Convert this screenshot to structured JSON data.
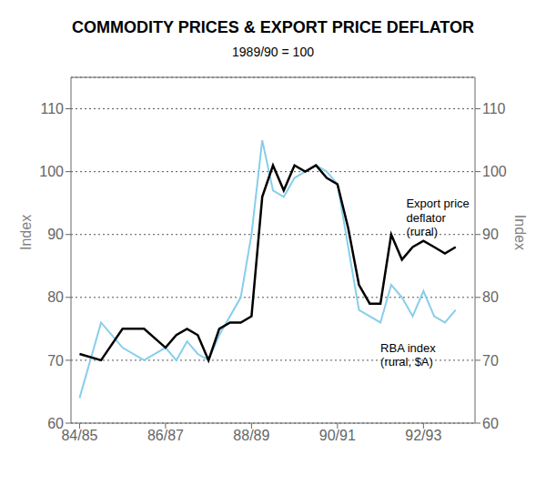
{
  "chart_data": {
    "type": "line",
    "title": "COMMODITY PRICES & EXPORT PRICE DEFLATOR",
    "subtitle": "1989/90 = 100",
    "ylabel": "Index",
    "y2label": "Index",
    "x": [
      0,
      0.5,
      1.0,
      1.5,
      2.0,
      2.25,
      2.5,
      2.75,
      3.0,
      3.25,
      3.5,
      3.75,
      4.0,
      4.25,
      4.5,
      4.75,
      5.0,
      5.25,
      5.5,
      5.75,
      6.0,
      6.25,
      6.5,
      6.75,
      7.0,
      7.25,
      7.5,
      7.75,
      8.0,
      8.25,
      8.5,
      8.75
    ],
    "series": [
      {
        "color": "#87ceeb",
        "values": [
          64,
          76,
          72,
          70,
          72,
          70,
          73,
          71,
          70,
          74,
          77,
          80,
          90,
          105,
          97,
          96,
          99,
          100,
          101,
          100,
          98,
          88,
          78,
          77,
          76,
          82,
          80,
          77,
          81,
          77,
          76,
          78
        ]
      },
      {
        "color": "#000000",
        "values": [
          71,
          70,
          75,
          75,
          72,
          74,
          75,
          74,
          70,
          75,
          76,
          76,
          77,
          96,
          101,
          97,
          101,
          100,
          101,
          99,
          98,
          91,
          82,
          79,
          79,
          90,
          86,
          88,
          89,
          88,
          87,
          88
        ]
      }
    ],
    "xlim": [
      -0.2,
      9.2
    ],
    "xticks": [
      {
        "value": 0,
        "label": "84/85"
      },
      {
        "value": 2,
        "label": "86/87"
      },
      {
        "value": 4,
        "label": "88/89"
      },
      {
        "value": 6,
        "label": "90/91"
      },
      {
        "value": 8,
        "label": "92/93"
      }
    ],
    "ylim": [
      60,
      115
    ],
    "yticks": [
      60,
      70,
      80,
      90,
      100,
      110
    ],
    "y2lim": [
      60,
      115
    ],
    "y2ticks": [
      60,
      70,
      80,
      90,
      100,
      110
    ],
    "grid": true,
    "annotations": [
      {
        "text": "Export price\ndeflator\n(rural)",
        "x": 7.6,
        "y": 96
      },
      {
        "text": "RBA index\n(rural, $A)",
        "x": 7.0,
        "y": 73
      }
    ]
  }
}
